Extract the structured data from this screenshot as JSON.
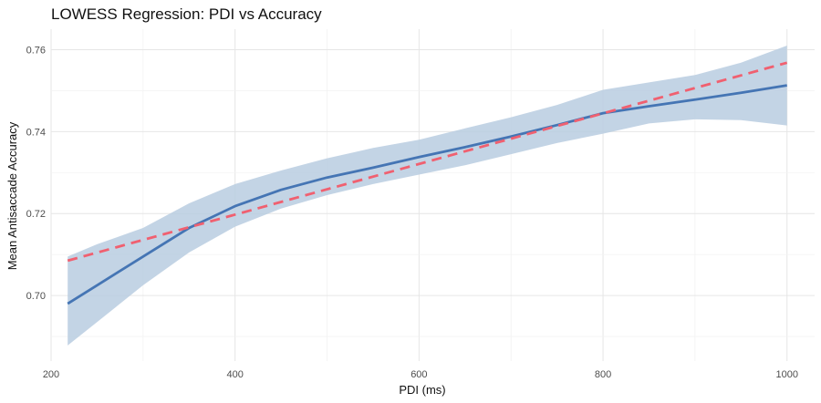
{
  "chart_data": {
    "type": "line",
    "title": "LOWESS Regression: PDI vs Accuracy",
    "xlabel": "PDI (ms)",
    "ylabel": "Mean Antisaccade Accuracy",
    "xlim": [
      200,
      1030
    ],
    "ylim": [
      0.684,
      0.765
    ],
    "x_ticks": [
      200,
      400,
      600,
      800,
      1000
    ],
    "y_ticks": [
      0.7,
      0.72,
      0.74,
      0.76
    ],
    "y_tick_labels": [
      "0.70",
      "0.72",
      "0.74",
      "0.76"
    ],
    "grid": true,
    "colors": {
      "lowess": "#4575b4",
      "band": "#b8cce0",
      "linear": "#f06070"
    },
    "series": [
      {
        "style": "solid",
        "x": [
          218,
          250,
          300,
          350,
          400,
          450,
          500,
          550,
          600,
          650,
          700,
          750,
          800,
          850,
          900,
          950,
          1000
        ],
        "y": [
          0.698,
          0.7025,
          0.7095,
          0.7165,
          0.7218,
          0.7258,
          0.7288,
          0.7312,
          0.7338,
          0.7362,
          0.7388,
          0.7416,
          0.7445,
          0.7462,
          0.7478,
          0.7495,
          0.7513
        ]
      },
      {
        "style": "dashed",
        "x": [
          218,
          1000
        ],
        "y": [
          0.7085,
          0.7568
        ]
      }
    ],
    "band": {
      "x": [
        218,
        250,
        300,
        350,
        400,
        450,
        500,
        550,
        600,
        650,
        700,
        750,
        800,
        850,
        900,
        950,
        1000
      ],
      "lower": [
        0.6878,
        0.6935,
        0.7025,
        0.7105,
        0.7168,
        0.7212,
        0.7245,
        0.7272,
        0.7295,
        0.7318,
        0.7345,
        0.7372,
        0.7395,
        0.742,
        0.743,
        0.7428,
        0.7415
      ],
      "upper": [
        0.7095,
        0.7125,
        0.7165,
        0.7225,
        0.7272,
        0.7305,
        0.7335,
        0.736,
        0.738,
        0.7408,
        0.7435,
        0.7465,
        0.7502,
        0.752,
        0.7538,
        0.7568,
        0.761
      ]
    }
  }
}
